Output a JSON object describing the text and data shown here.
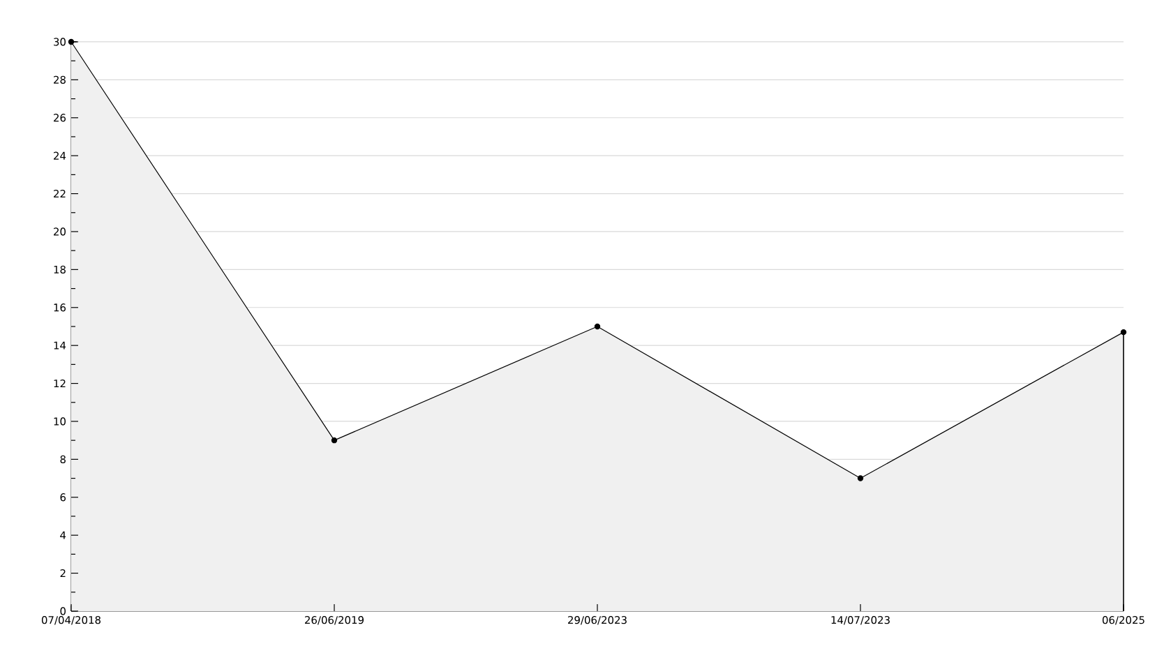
{
  "chart_data": {
    "type": "area",
    "categories": [
      "07/04/2018",
      "26/06/2019",
      "29/06/2023",
      "14/07/2023",
      "06/2025"
    ],
    "values": [
      30,
      9,
      15,
      7,
      14.7
    ],
    "color": "#f0f0f0",
    "marker": "circle",
    "ylim": [
      0,
      30
    ],
    "yticks": [
      0,
      {
        "value": 1,
        "label": null
      },
      2,
      {
        "value": 3,
        "label": null
      },
      4,
      {
        "value": 5,
        "label": null
      },
      6,
      {
        "value": 7,
        "label": null
      },
      8,
      {
        "value": 9,
        "label": null
      },
      10,
      {
        "value": 11,
        "label": null
      },
      12,
      {
        "value": 13,
        "label": null
      },
      14,
      {
        "value": 15,
        "label": null
      },
      16,
      {
        "value": 17,
        "label": null
      },
      18,
      {
        "value": 19,
        "label": null
      },
      20,
      {
        "value": 21,
        "label": null
      },
      22,
      {
        "value": 23,
        "label": null
      },
      24,
      {
        "value": 25,
        "label": null
      },
      26,
      {
        "value": 27,
        "label": null
      },
      28,
      {
        "value": 29,
        "label": null
      },
      30
    ],
    "grid": "y"
  }
}
